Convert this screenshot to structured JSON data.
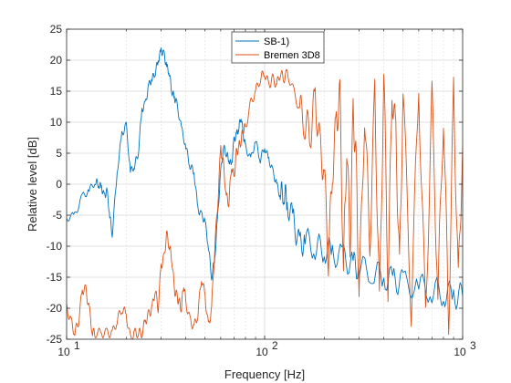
{
  "chart_data": {
    "type": "line",
    "title": "",
    "xlabel": "Frequency [Hz]",
    "ylabel": "Relative level [dB]",
    "xscale": "log",
    "xlim": [
      10,
      1000
    ],
    "ylim": [
      -25,
      25
    ],
    "xticks": [
      10,
      100,
      1000
    ],
    "xtick_labels": [
      {
        "base": "10",
        "exp": "1"
      },
      {
        "base": "10",
        "exp": "2"
      },
      {
        "base": "10",
        "exp": "3"
      }
    ],
    "yticks": [
      -25,
      -20,
      -15,
      -10,
      -5,
      0,
      5,
      10,
      15,
      20,
      25
    ],
    "ytick_labels": [
      "-25",
      "-20",
      "-15",
      "-10",
      "-5",
      "0",
      "5",
      "10",
      "15",
      "20",
      "25"
    ],
    "grid": true,
    "legend_position": "top-center",
    "series": [
      {
        "name": "SB-1)",
        "color": "#0072BD",
        "x": [
          10,
          11,
          12,
          13,
          14,
          14.5,
          15,
          15.5,
          16,
          16.5,
          17,
          18,
          19,
          20,
          21,
          22,
          23,
          24,
          25,
          26,
          27,
          28,
          29,
          30,
          31,
          32,
          33,
          34,
          35,
          36,
          38,
          40,
          42,
          44,
          46,
          48,
          50,
          52,
          54,
          56,
          58,
          60,
          62,
          64,
          66,
          68,
          70,
          72,
          74,
          76,
          78,
          80,
          85,
          90,
          95,
          100,
          105,
          110,
          115,
          120,
          125,
          130,
          140,
          150,
          160,
          180,
          200,
          220,
          250,
          280,
          300,
          350,
          400,
          450,
          500,
          600,
          700,
          800,
          900,
          1000
        ],
        "values": [
          -5.5,
          -5,
          -2,
          -1,
          0.5,
          0,
          -0.5,
          -2,
          -1,
          -5,
          -8,
          2,
          8,
          9.5,
          2,
          3,
          5,
          12,
          13,
          16,
          17,
          18,
          20,
          21.5,
          21,
          19,
          18,
          15,
          14,
          13,
          9,
          6,
          3,
          2,
          -4,
          -5,
          -6,
          -10,
          -15,
          -12,
          -5,
          2,
          6,
          5,
          4,
          3,
          7,
          8,
          9,
          11,
          8,
          6,
          4,
          7,
          4,
          6,
          4,
          2,
          0,
          -2,
          -1,
          -3,
          -6,
          -10,
          -9,
          -10,
          -10.5,
          -11,
          -12,
          -13,
          -13.5,
          -14,
          -15,
          -15.5,
          -16,
          -16.5,
          -17,
          -17.5,
          -18,
          -18
        ]
      },
      {
        "name": "Bremen 3D8",
        "color": "#D95319",
        "x": [
          10,
          10.5,
          11,
          11.5,
          12,
          12.5,
          13,
          13.5,
          14,
          15,
          16,
          17,
          18,
          19,
          20,
          21,
          22,
          23,
          24,
          25,
          26,
          27,
          28,
          29,
          30,
          31,
          32,
          33,
          34,
          35,
          36,
          37,
          38,
          39,
          40,
          42,
          44,
          46,
          48,
          50,
          52,
          54,
          56,
          58,
          60,
          62,
          64,
          66,
          68,
          70,
          72,
          74,
          76,
          78,
          80,
          85,
          90,
          95,
          100,
          105,
          110,
          115,
          120,
          125,
          130,
          140,
          150,
          160,
          170,
          180,
          190,
          200,
          210,
          220,
          230,
          240,
          250,
          260,
          270,
          280,
          290,
          300,
          320,
          340,
          360,
          380,
          400,
          420,
          440,
          460,
          480,
          500,
          550,
          600,
          650,
          700,
          750,
          800,
          850,
          900,
          950,
          1000
        ],
        "values": [
          -20,
          -22,
          -24,
          -22,
          -17,
          -17,
          -20,
          -24,
          -24,
          -24,
          -24,
          -24,
          -22,
          -20,
          -21,
          -25,
          -24,
          -24,
          -24,
          -22,
          -21,
          -20,
          -17,
          -20,
          -13,
          -12,
          -8,
          -10,
          -12,
          -17,
          -18,
          -19,
          -20,
          -16,
          -19,
          -22,
          -23,
          -21,
          -15,
          -18,
          -23,
          -20,
          -10,
          -3,
          6,
          3,
          -2,
          -3,
          3,
          1,
          5,
          6,
          7,
          9,
          9,
          13,
          15,
          17,
          18,
          16,
          17,
          16,
          18,
          17,
          18,
          15,
          12,
          10,
          8,
          14,
          6,
          2,
          -12,
          2,
          10,
          14,
          -14,
          7,
          -10,
          12,
          3,
          -18,
          12,
          -10,
          15,
          -20,
          18,
          -16,
          15,
          8,
          -14,
          15,
          -20,
          16,
          -22,
          14,
          -18,
          12,
          -23,
          15,
          -16,
          6
        ]
      }
    ]
  }
}
